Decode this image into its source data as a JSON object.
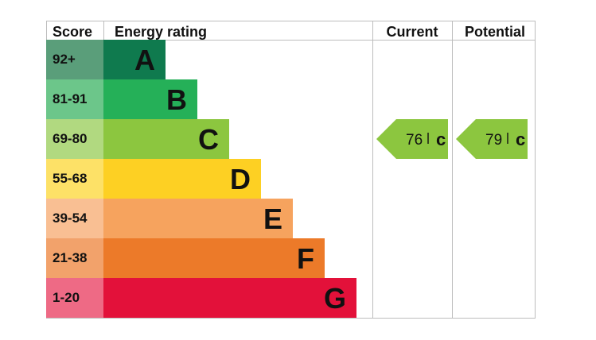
{
  "headers": {
    "score": "Score",
    "rating": "Energy rating",
    "current": "Current",
    "potential": "Potential"
  },
  "chart_data": {
    "type": "bar",
    "bands": [
      {
        "score": "92+",
        "letter": "A",
        "color": "#0f7a4e",
        "score_color": "#5a9e7a"
      },
      {
        "score": "81-91",
        "letter": "B",
        "color": "#25b058",
        "score_color": "#6cc68a"
      },
      {
        "score": "69-80",
        "letter": "C",
        "color": "#8cc63f",
        "score_color": "#b1d980"
      },
      {
        "score": "55-68",
        "letter": "D",
        "color": "#fdd023",
        "score_color": "#fde167"
      },
      {
        "score": "39-54",
        "letter": "E",
        "color": "#f6a35e",
        "score_color": "#f9bf93"
      },
      {
        "score": "21-38",
        "letter": "F",
        "color": "#ec7a29",
        "score_color": "#f2a26b"
      },
      {
        "score": "1-20",
        "letter": "G",
        "color": "#e3113a",
        "score_color": "#ee6a85"
      }
    ],
    "current": {
      "value": 76,
      "letter": "C",
      "color": "#8cc63f"
    },
    "potential": {
      "value": 79,
      "letter": "C",
      "color": "#8cc63f"
    }
  }
}
